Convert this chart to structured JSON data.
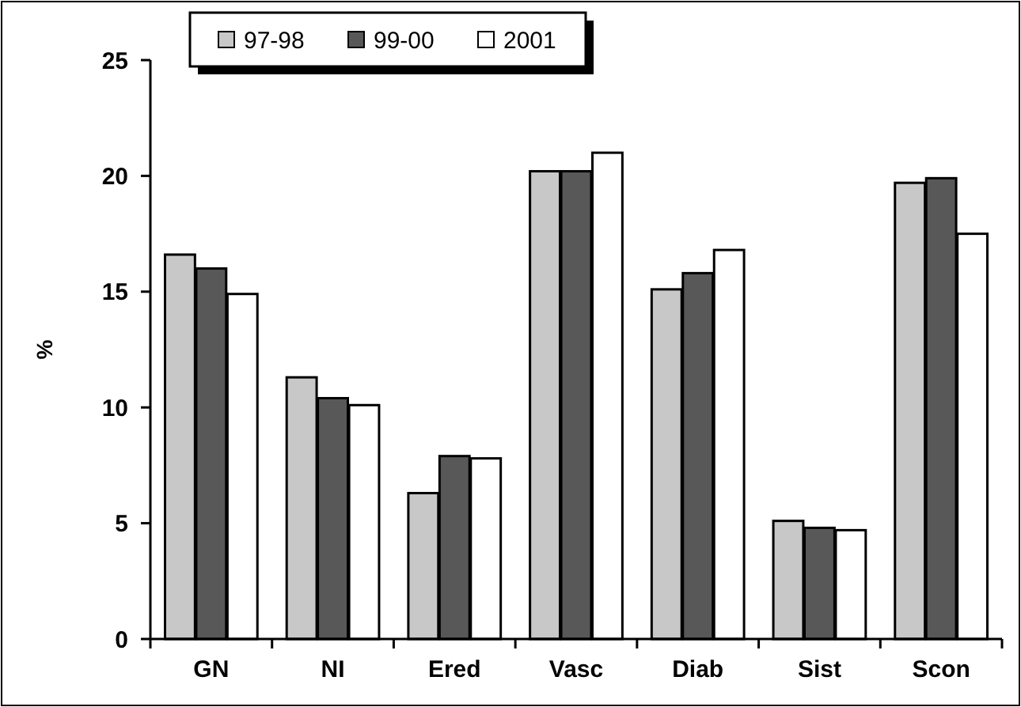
{
  "chart_data": {
    "type": "bar",
    "ylabel": "%",
    "categories": [
      "GN",
      "NI",
      "Ered",
      "Vasc",
      "Diab",
      "Sist",
      "Scon"
    ],
    "series": [
      {
        "name": "97-98",
        "color": "#c8c8c8",
        "values": [
          16.6,
          11.3,
          6.3,
          20.2,
          15.1,
          5.1,
          19.7
        ]
      },
      {
        "name": "99-00",
        "color": "#585858",
        "values": [
          16.0,
          10.4,
          7.9,
          20.2,
          15.8,
          4.8,
          19.9
        ]
      },
      {
        "name": "2001",
        "color": "#ffffff",
        "values": [
          14.9,
          10.1,
          7.8,
          21.0,
          16.8,
          4.7,
          17.5
        ]
      }
    ],
    "ylim": [
      0,
      25
    ],
    "yticks": [
      0,
      5,
      10,
      15,
      20,
      25
    ],
    "grid": false,
    "legend": "top"
  }
}
